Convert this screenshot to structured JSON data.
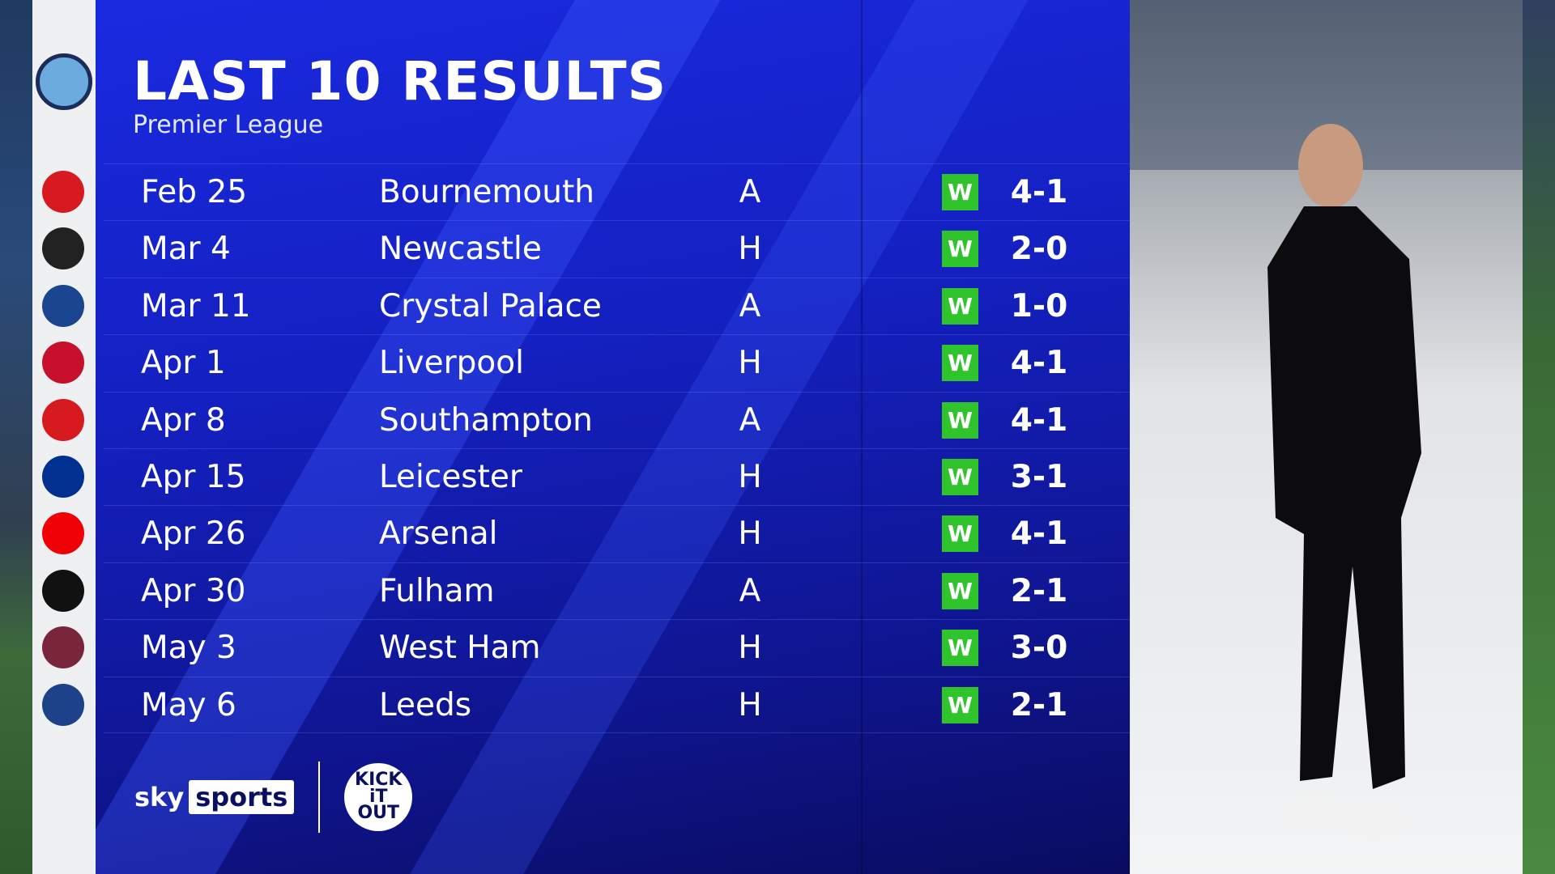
{
  "title": "LAST 10 RESULTS",
  "subtitle": "Premier League",
  "team_crest": "MANCHESTER CITY",
  "colors": {
    "panel": "#1420c0",
    "win": "#2fc32c"
  },
  "results": [
    {
      "date": "Feb 25",
      "opponent": "Bournemouth",
      "venue": "A",
      "result": "W",
      "score": "4-1",
      "crest_color": "#d71920"
    },
    {
      "date": "Mar 4",
      "opponent": "Newcastle",
      "venue": "H",
      "result": "W",
      "score": "2-0",
      "crest_color": "#222222"
    },
    {
      "date": "Mar 11",
      "opponent": "Crystal Palace",
      "venue": "A",
      "result": "W",
      "score": "1-0",
      "crest_color": "#1b458f"
    },
    {
      "date": "Apr 1",
      "opponent": "Liverpool",
      "venue": "H",
      "result": "W",
      "score": "4-1",
      "crest_color": "#c8102e"
    },
    {
      "date": "Apr 8",
      "opponent": "Southampton",
      "venue": "A",
      "result": "W",
      "score": "4-1",
      "crest_color": "#d71920"
    },
    {
      "date": "Apr 15",
      "opponent": "Leicester",
      "venue": "H",
      "result": "W",
      "score": "3-1",
      "crest_color": "#003090"
    },
    {
      "date": "Apr 26",
      "opponent": "Arsenal",
      "venue": "H",
      "result": "W",
      "score": "4-1",
      "crest_color": "#ef0107"
    },
    {
      "date": "Apr 30",
      "opponent": "Fulham",
      "venue": "A",
      "result": "W",
      "score": "2-1",
      "crest_color": "#111111"
    },
    {
      "date": "May 3",
      "opponent": "West Ham",
      "venue": "H",
      "result": "W",
      "score": "3-0",
      "crest_color": "#7a263a"
    },
    {
      "date": "May 6",
      "opponent": "Leeds",
      "venue": "H",
      "result": "W",
      "score": "2-1",
      "crest_color": "#1d428a"
    }
  ],
  "footer": {
    "sky": "sky",
    "sports": "sports",
    "kick": "KICK",
    "it": "iT",
    "out": "OUT"
  }
}
